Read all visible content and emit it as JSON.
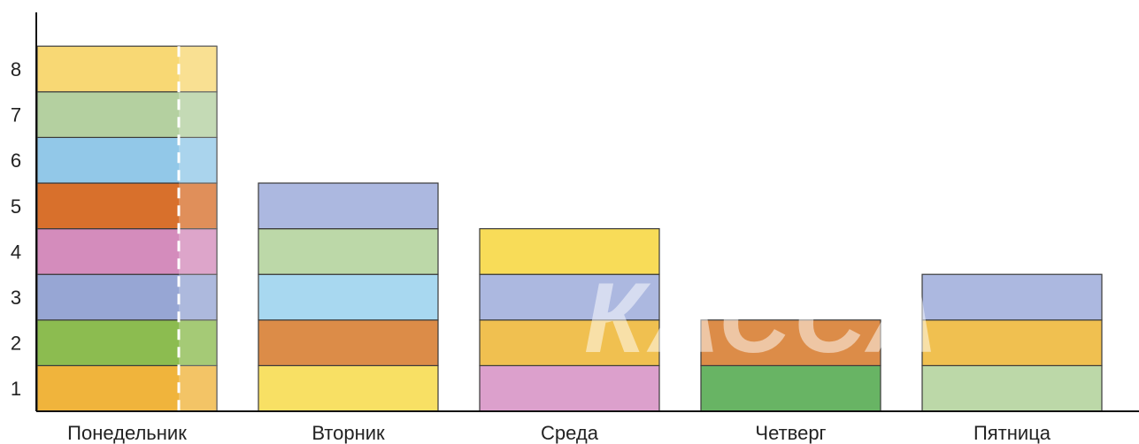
{
  "chart_data": {
    "type": "bar",
    "stacked": true,
    "categories": [
      "Понедельник",
      "Вторник",
      "Среда",
      "Четверг",
      "Пятница"
    ],
    "yticks": [
      "1",
      "2",
      "3",
      "4",
      "5",
      "6",
      "7",
      "8"
    ],
    "ylim": [
      0,
      9
    ],
    "segments": [
      [
        "#f0b43c",
        "#8cbc50",
        "#97a6d4",
        "#d48cbc",
        "#d8702c",
        "#92c8e8",
        "#b4d0a0",
        "#f8d874"
      ],
      [
        "#f8e064",
        "#dc8c48",
        "#a8d8f0",
        "#bcd8a8",
        "#acb8e0"
      ],
      [
        "#dca0cc",
        "#f0c050",
        "#acb8e0",
        "#f8dc58"
      ],
      [
        "#68b464",
        "#dc8c48"
      ],
      [
        "#bcd8a8",
        "#f0c050",
        "#acb8e0"
      ]
    ],
    "totals": [
      8,
      5,
      4,
      2,
      3
    ],
    "dashed_divider": true,
    "grid": false
  },
  "watermark": "КАССА"
}
